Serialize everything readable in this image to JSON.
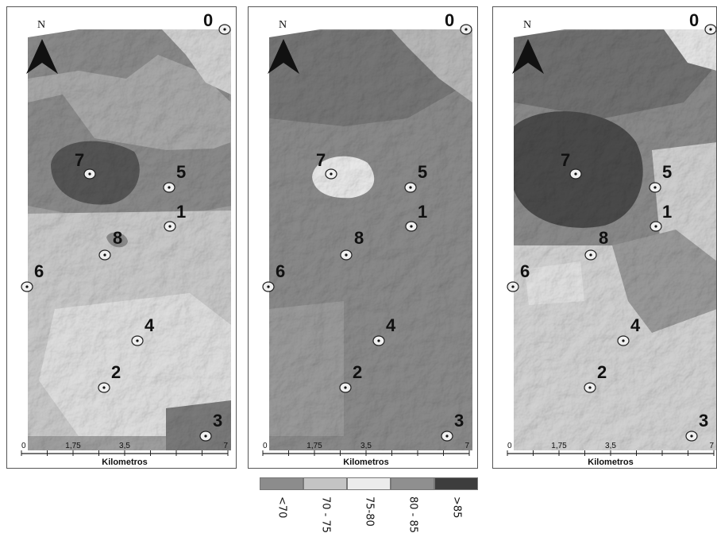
{
  "north_label": "N",
  "scale_ticks": [
    "0",
    "1,75",
    "3,5",
    "7"
  ],
  "scale_unit": "Kilometros",
  "sites": [
    {
      "id": "0",
      "label": "0"
    },
    {
      "id": "1",
      "label": "1"
    },
    {
      "id": "2",
      "label": "2"
    },
    {
      "id": "3",
      "label": "3"
    },
    {
      "id": "4",
      "label": "4"
    },
    {
      "id": "5",
      "label": "5"
    },
    {
      "id": "6",
      "label": "6"
    },
    {
      "id": "7",
      "label": "7"
    },
    {
      "id": "8",
      "label": "8"
    }
  ],
  "panels": [
    {
      "name": "map-panel-left",
      "zones": "left"
    },
    {
      "name": "map-panel-middle",
      "zones": "middle"
    },
    {
      "name": "map-panel-right",
      "zones": "right"
    }
  ],
  "legend": {
    "classes": [
      {
        "label": "<70",
        "color": "#8c8c8c"
      },
      {
        "label": "70 - 75",
        "color": "#c4c4c4"
      },
      {
        "label": "75-80",
        "color": "#ececec"
      },
      {
        "label": "80 - 85",
        "color": "#8f8f8f"
      },
      {
        "label": ">85",
        "color": "#3d3d3d"
      }
    ]
  }
}
